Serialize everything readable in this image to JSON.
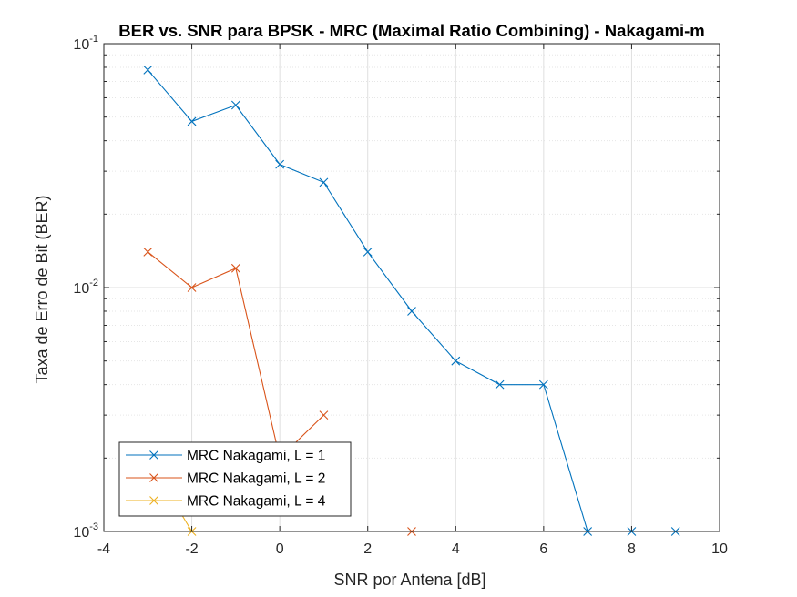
{
  "chart_data": {
    "type": "line",
    "title": "BER vs. SNR para BPSK - MRC (Maximal Ratio Combining) - Nakagami-m",
    "xlabel": "SNR por Antena [dB]",
    "ylabel": "Taxa de Erro de Bit (BER)",
    "xlim": [
      -4,
      10
    ],
    "ylim": [
      0.001,
      0.1
    ],
    "yscale": "log",
    "grid": true,
    "minor_grid": true,
    "legend_position": "bottom-left",
    "x_ticks": [
      -4,
      -2,
      0,
      2,
      4,
      6,
      8,
      10
    ],
    "x_tick_labels": [
      "-4",
      "-2",
      "0",
      "2",
      "4",
      "6",
      "8",
      "10"
    ],
    "y_ticks": [
      {
        "value": 0.1,
        "base": "10",
        "exp": "-1"
      },
      {
        "value": 0.01,
        "base": "10",
        "exp": "-2"
      },
      {
        "value": 0.001,
        "base": "10",
        "exp": "-3"
      }
    ],
    "marker": "x",
    "series": [
      {
        "name": "MRC Nakagami, L = 1",
        "color": "#0072BD",
        "x": [
          -3,
          -2,
          -1,
          0,
          1,
          2,
          3,
          4,
          5,
          6,
          7,
          8,
          9
        ],
        "y": [
          0.078,
          0.048,
          0.056,
          0.032,
          0.027,
          0.014,
          0.008,
          0.005,
          0.004,
          0.004,
          0.001,
          0.001,
          0.001
        ]
      },
      {
        "name": "MRC Nakagami, L = 2",
        "color": "#D95319",
        "segments": [
          {
            "x": [
              -3,
              -2,
              -1,
              0,
              1
            ],
            "y": [
              0.014,
              0.01,
              0.012,
              0.002,
              0.003
            ]
          },
          {
            "x": [
              3
            ],
            "y": [
              0.001
            ]
          }
        ]
      },
      {
        "name": "MRC Nakagami, L = 4",
        "color": "#EDB120",
        "segments": [
          {
            "x": [
              -3,
              -2
            ],
            "y": [
              0.002,
              0.001
            ]
          }
        ]
      }
    ]
  }
}
